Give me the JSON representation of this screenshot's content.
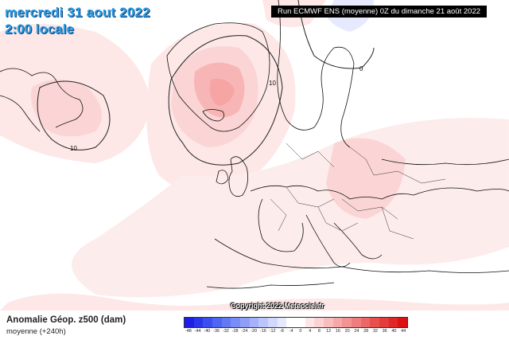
{
  "title": {
    "date": "mercredi 31 aout 2022",
    "time": "2:00 locale"
  },
  "run_info": "Run ECMWF ENS (moyenne) 0Z du dimanche 21 août 2022",
  "copyright": "Copyright 2022 Meteociel.fr",
  "parameter": {
    "label": "Anomalie Géop. z500 (dam)",
    "mean": "moyenne   (+240h)"
  },
  "contour_labels": [
    "10",
    "10",
    "0"
  ],
  "legend": {
    "ticks": [
      "-48",
      "-44",
      "-40",
      "-36",
      "-32",
      "-28",
      "-24",
      "-20",
      "-16",
      "-12",
      "-8",
      "-4",
      "0",
      "4",
      "8",
      "12",
      "16",
      "20",
      "24",
      "28",
      "32",
      "36",
      "40",
      "44"
    ],
    "colors": [
      "#1e1ee6",
      "#2b36ea",
      "#3a4ff0",
      "#4f66f2",
      "#6478f4",
      "#7a8cf6",
      "#8f9ff7",
      "#a5b2f9",
      "#bcc5fb",
      "#d2d8fc",
      "#e6e9fe",
      "#ffffff",
      "#ffffff",
      "#fde6e6",
      "#fbd3d3",
      "#f9bdbd",
      "#f6a8a8",
      "#f39393",
      "#f07d7d",
      "#ec6767",
      "#e85050",
      "#e43b3b",
      "#e02626",
      "#dc1212"
    ]
  }
}
